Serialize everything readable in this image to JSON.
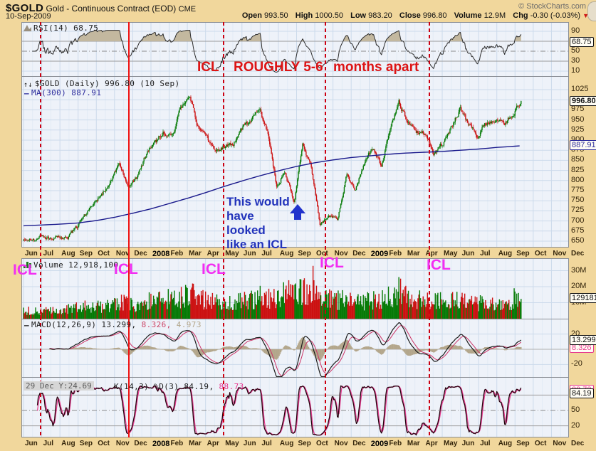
{
  "header": {
    "symbol": "$GOLD",
    "name": "Gold - Continuous Contract (EOD)",
    "exchange": "CME",
    "date": "10-Sep-2009",
    "credit": "© StockCharts.com",
    "quote": {
      "open_label": "Open",
      "open": "993.50",
      "high_label": "High",
      "high": "1000.50",
      "low_label": "Low",
      "low": "983.20",
      "close_label": "Close",
      "close": "996.80",
      "volume_label": "Volume",
      "volume": "12.9M",
      "chg_label": "Chg",
      "chg": "-0.30 (-0.03%)"
    }
  },
  "panels": {
    "rsi": {
      "legend": "RSI(14) 68.75",
      "badge": "68.75",
      "ticks": [
        90,
        50,
        30,
        10
      ]
    },
    "price": {
      "legend": "$GOLD (Daily) 996.80 (10 Sep)",
      "ma_legend": "MA(300) 887.91",
      "badge": "996.80",
      "ma_badge": "887.91",
      "ticks": [
        1025,
        975,
        950,
        925,
        900,
        875,
        850,
        825,
        800,
        775,
        750,
        725,
        700,
        675,
        650
      ]
    },
    "volume": {
      "legend": "Volume 12,918,100",
      "badge": "12918100",
      "ticks": [
        "30M",
        "20M",
        "10M"
      ]
    },
    "macd": {
      "legend_name": "MACD(12,26,9)",
      "v1": "13.299,",
      "v2": "8.326,",
      "v3": "4.973",
      "badge1": "13.299",
      "badge2": "8.326",
      "ticks": [
        20,
        -20
      ]
    },
    "stoch": {
      "tooltip": "29 Dec Y:24.69",
      "legend_name": "K(14,3) %D(3)",
      "v1": "84.19,",
      "v2": "88.73",
      "badge1": "84.19",
      "badge2": "88.73",
      "ticks": [
        50,
        20
      ]
    }
  },
  "axis": {
    "months": [
      "Jun",
      "Jul",
      "Aug",
      "Sep",
      "Oct",
      "Nov",
      "Dec",
      "2008",
      "Feb",
      "Mar",
      "Apr",
      "May",
      "Jun",
      "Jul",
      "Aug",
      "Sep",
      "Oct",
      "Nov",
      "Dec",
      "2009",
      "Feb",
      "Mar",
      "Apr",
      "May",
      "Jun",
      "Jul",
      "Aug",
      "Sep",
      "Oct",
      "Nov",
      "Dec"
    ]
  },
  "annotations": {
    "cycle_note_part1": "ICL",
    "cycle_note_part2": "ROUGHLY 5-6",
    "cycle_note_part3": "months apart",
    "icl_labels": [
      "ICL",
      "ICL",
      "ICL",
      "ICL",
      "ICL"
    ],
    "blue_note_lines": [
      "This would",
      "have",
      "looked",
      "like an ICL"
    ]
  },
  "chart_data": {
    "type": "candlestick",
    "title": "$GOLD Gold - Continuous Contract (EOD) CME",
    "x_range": [
      "Jun-2007",
      "Sep-2009"
    ],
    "grid": true,
    "legend_position": "top-left",
    "price_ylim": [
      650,
      1025
    ],
    "rsi_ylim": [
      0,
      100
    ],
    "volume_ylim_millions": [
      0,
      33
    ],
    "macd_ylim": [
      -35,
      35
    ],
    "stoch_ylim": [
      0,
      100
    ],
    "close_keypoints": [
      655,
      650,
      662,
      655,
      662,
      657,
      681,
      715,
      743,
      768,
      800,
      841,
      789,
      806,
      862,
      890,
      923,
      910,
      975,
      1011,
      934,
      905,
      868,
      885,
      889,
      930,
      946,
      981,
      912,
      789,
      820,
      745,
      893,
      830,
      690,
      710,
      705,
      815,
      775,
      838,
      882,
      835,
      928,
      995,
      940,
      922,
      918,
      868,
      890,
      930,
      978,
      937,
      912,
      942,
      953,
      940,
      958,
      997
    ],
    "ma300_keypoints": [
      688,
      690,
      692,
      695,
      701,
      709,
      719,
      730,
      743,
      756,
      770,
      785,
      799,
      812,
      824,
      835,
      844,
      851,
      857,
      861,
      865,
      868,
      870,
      872,
      875,
      878,
      882,
      885,
      888
    ],
    "volume_keypoints_millions": [
      5,
      5,
      5,
      5,
      6,
      6,
      7,
      8,
      8,
      8,
      9,
      11,
      9,
      8,
      11,
      12,
      13,
      12,
      14,
      16,
      13,
      12,
      11,
      10,
      10,
      11,
      12,
      14,
      13,
      14,
      16,
      17,
      18,
      15,
      14,
      13,
      12,
      12,
      10,
      11,
      12,
      12,
      14,
      18,
      14,
      12,
      12,
      12,
      11,
      11,
      12,
      11,
      10,
      10,
      10,
      10,
      11,
      13
    ],
    "last_close": 996.8,
    "indicators": {
      "rsi_period": 14,
      "rsi_last": 68.75,
      "ma_period": 300,
      "ma_last": 887.91,
      "macd_params": [
        12,
        26,
        9
      ],
      "macd_last": [
        13.299,
        8.326,
        4.973
      ],
      "stoch_label": "K(14,3) %D(3)",
      "stoch_last": [
        84.19,
        88.73
      ],
      "volume_last": 12918100
    },
    "vlines_month_pos": {
      "dashed": [
        0.94,
        10.99,
        16.59,
        22.3
      ],
      "solid": [
        5.79
      ]
    }
  }
}
